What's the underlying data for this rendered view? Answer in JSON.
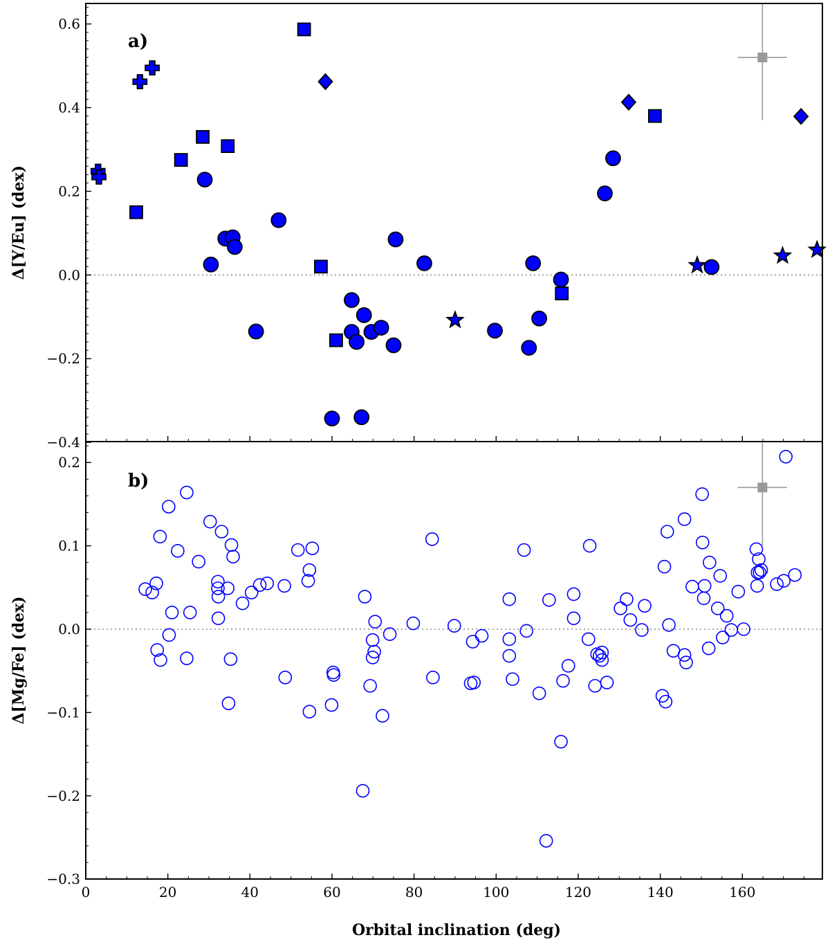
{
  "chart_data": [
    {
      "type": "scatter",
      "panel_label": "a)",
      "ylabel": "Δ[Y/Eu] (dex)",
      "xlabel": "",
      "xlim": [
        0,
        180
      ],
      "ylim": [
        -0.4,
        0.65
      ],
      "xticks": [
        0,
        20,
        40,
        60,
        80,
        100,
        120,
        140,
        160
      ],
      "yticks": [
        -0.4,
        -0.2,
        0.0,
        0.2,
        0.4,
        0.6
      ],
      "ytick_labels": [
        "−0.4",
        "−0.2",
        "0.0",
        "0.2",
        "0.4",
        "0.6"
      ],
      "zero_line": true,
      "fill_color": "#0000ff",
      "edge_color": "#000000",
      "error_bar": {
        "x": 164.9,
        "y": 0.52,
        "xerr": 6,
        "yerr": 0.15,
        "color": "#999999"
      },
      "series": [
        {
          "marker": "circle",
          "points": [
            [
              29,
              0.228
            ],
            [
              30.5,
              0.025
            ],
            [
              34,
              0.087
            ],
            [
              35.8,
              0.09
            ],
            [
              36.3,
              0.067
            ],
            [
              41.5,
              -0.135
            ],
            [
              47,
              0.131
            ],
            [
              60,
              -0.343
            ],
            [
              64.8,
              -0.06
            ],
            [
              64.8,
              -0.136
            ],
            [
              66,
              -0.16
            ],
            [
              67.2,
              -0.34
            ],
            [
              67.8,
              -0.096
            ],
            [
              69.6,
              -0.136
            ],
            [
              72,
              -0.126
            ],
            [
              75,
              -0.168
            ],
            [
              75.5,
              0.085
            ],
            [
              82.5,
              0.028
            ],
            [
              99.7,
              -0.133
            ],
            [
              108,
              -0.174
            ],
            [
              109,
              0.028
            ],
            [
              110.5,
              -0.104
            ],
            [
              115.8,
              -0.011
            ],
            [
              126.5,
              0.195
            ],
            [
              128.5,
              0.279
            ],
            [
              152.5,
              0.019
            ]
          ]
        },
        {
          "marker": "square",
          "points": [
            [
              12.3,
              0.15
            ],
            [
              23.2,
              0.275
            ],
            [
              28.5,
              0.33
            ],
            [
              34.6,
              0.308
            ],
            [
              53.2,
              0.587
            ],
            [
              57.3,
              0.02
            ],
            [
              61,
              -0.156
            ],
            [
              116,
              -0.044
            ],
            [
              138.7,
              0.38
            ]
          ]
        },
        {
          "marker": "diamond",
          "points": [
            [
              58.4,
              0.462
            ],
            [
              132.3,
              0.413
            ],
            [
              174.3,
              0.379
            ]
          ]
        },
        {
          "marker": "plus",
          "points": [
            [
              3,
              0.248
            ],
            [
              3.2,
              0.234
            ],
            [
              13.2,
              0.462
            ],
            [
              16.2,
              0.495
            ]
          ]
        },
        {
          "marker": "star",
          "points": [
            [
              90,
              -0.108
            ],
            [
              149,
              0.023
            ],
            [
              169.8,
              0.046
            ],
            [
              178.2,
              0.06
            ]
          ]
        }
      ]
    },
    {
      "type": "scatter",
      "panel_label": "b)",
      "ylabel": "Δ[Mg/Fe] (dex)",
      "xlabel": "Orbital inclination (deg)",
      "xlim": [
        0,
        180
      ],
      "ylim": [
        -0.3,
        0.225
      ],
      "xticks": [
        0,
        20,
        40,
        60,
        80,
        100,
        120,
        140,
        160
      ],
      "yticks": [
        -0.3,
        -0.2,
        -0.1,
        0.0,
        0.1,
        0.2
      ],
      "ytick_labels": [
        "−0.3",
        "−0.2",
        "−0.1",
        "0.0",
        "0.1",
        "0.2"
      ],
      "zero_line": true,
      "edge_color": "#0000ff",
      "error_bar": {
        "x": 164.9,
        "y": 0.17,
        "xerr": 6,
        "yerr": 0.07,
        "color": "#999999"
      },
      "series": [
        {
          "marker": "open-circle",
          "points": [
            [
              14.5,
              0.048
            ],
            [
              16.2,
              0.044
            ],
            [
              17.2,
              0.055
            ],
            [
              18.1,
              0.111
            ],
            [
              17.4,
              -0.025
            ],
            [
              18.2,
              -0.037
            ],
            [
              20.2,
              0.147
            ],
            [
              20.3,
              -0.007
            ],
            [
              21,
              0.02
            ],
            [
              22.4,
              0.094
            ],
            [
              24.6,
              0.164
            ],
            [
              24.6,
              -0.035
            ],
            [
              25.4,
              0.02
            ],
            [
              27.5,
              0.081
            ],
            [
              30.3,
              0.129
            ],
            [
              32.2,
              0.057
            ],
            [
              32.2,
              0.049
            ],
            [
              32.3,
              0.039
            ],
            [
              32.3,
              0.013
            ],
            [
              33.1,
              0.117
            ],
            [
              34.6,
              0.049
            ],
            [
              34.8,
              -0.089
            ],
            [
              35.3,
              -0.036
            ],
            [
              35.5,
              0.101
            ],
            [
              35.9,
              0.087
            ],
            [
              38.2,
              0.031
            ],
            [
              40.4,
              0.044
            ],
            [
              42.4,
              0.053
            ],
            [
              44.2,
              0.055
            ],
            [
              48.4,
              0.052
            ],
            [
              48.6,
              -0.058
            ],
            [
              51.7,
              0.095
            ],
            [
              54.2,
              0.058
            ],
            [
              54.5,
              0.071
            ],
            [
              54.5,
              -0.099
            ],
            [
              55.2,
              0.097
            ],
            [
              59.9,
              -0.091
            ],
            [
              60.3,
              -0.052
            ],
            [
              60.4,
              -0.055
            ],
            [
              68,
              0.039
            ],
            [
              67.5,
              -0.194
            ],
            [
              69.3,
              -0.068
            ],
            [
              69.9,
              -0.013
            ],
            [
              69.9,
              -0.034
            ],
            [
              70.3,
              -0.027
            ],
            [
              70.5,
              0.009
            ],
            [
              72.3,
              -0.104
            ],
            [
              74.1,
              -0.006
            ],
            [
              79.8,
              0.007
            ],
            [
              84.4,
              0.108
            ],
            [
              84.6,
              -0.058
            ],
            [
              89.8,
              0.004
            ],
            [
              93.8,
              -0.065
            ],
            [
              94.3,
              -0.015
            ],
            [
              94.6,
              -0.064
            ],
            [
              96.5,
              -0.008
            ],
            [
              103.2,
              0.036
            ],
            [
              103.2,
              -0.012
            ],
            [
              103.2,
              -0.032
            ],
            [
              104,
              -0.06
            ],
            [
              106.8,
              0.095
            ],
            [
              107.4,
              -0.002
            ],
            [
              110.5,
              -0.077
            ],
            [
              112.2,
              -0.254
            ],
            [
              112.9,
              0.035
            ],
            [
              115.8,
              -0.135
            ],
            [
              116.3,
              -0.062
            ],
            [
              117.6,
              -0.044
            ],
            [
              118.9,
              0.042
            ],
            [
              118.9,
              0.013
            ],
            [
              122.5,
              -0.012
            ],
            [
              122.8,
              0.1
            ],
            [
              124.1,
              -0.068
            ],
            [
              124.6,
              -0.03
            ],
            [
              125.2,
              -0.032
            ],
            [
              125.8,
              -0.028
            ],
            [
              125.8,
              -0.037
            ],
            [
              127,
              -0.064
            ],
            [
              130.3,
              0.025
            ],
            [
              131.8,
              0.036
            ],
            [
              132.7,
              0.011
            ],
            [
              135.5,
              -0.001
            ],
            [
              136.2,
              0.028
            ],
            [
              140.5,
              -0.08
            ],
            [
              141,
              0.075
            ],
            [
              141.3,
              -0.087
            ],
            [
              141.7,
              0.117
            ],
            [
              142.1,
              0.005
            ],
            [
              143.2,
              -0.026
            ],
            [
              145.9,
              -0.031
            ],
            [
              145.9,
              0.132
            ],
            [
              146.3,
              -0.04
            ],
            [
              147.8,
              0.051
            ],
            [
              150.2,
              0.162
            ],
            [
              150.3,
              0.104
            ],
            [
              150.6,
              0.037
            ],
            [
              150.8,
              0.052
            ],
            [
              151.8,
              -0.023
            ],
            [
              152,
              0.08
            ],
            [
              154,
              0.025
            ],
            [
              154.6,
              0.064
            ],
            [
              155.2,
              -0.01
            ],
            [
              156.2,
              0.016
            ],
            [
              157.3,
              -0.001
            ],
            [
              159,
              0.045
            ],
            [
              160.3,
              0
            ],
            [
              163.4,
              0.096
            ],
            [
              163.6,
              0.052
            ],
            [
              163.7,
              0.068
            ],
            [
              164,
              0.084
            ],
            [
              164.2,
              0.068
            ],
            [
              164.6,
              0.071
            ],
            [
              168.4,
              0.054
            ],
            [
              170.1,
              0.058
            ],
            [
              170.6,
              0.207
            ],
            [
              172.8,
              0.065
            ]
          ]
        }
      ]
    }
  ]
}
